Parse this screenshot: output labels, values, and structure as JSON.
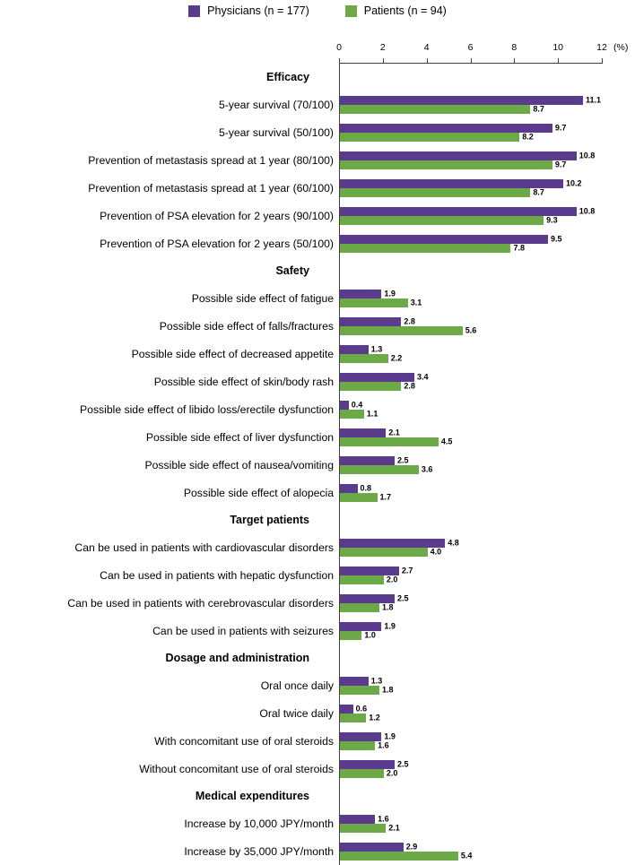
{
  "legend": {
    "physicians_label": "Physicians (n = 177)",
    "patients_label": "Patients (n = 94)"
  },
  "colors": {
    "physicians": "#5B3B8E",
    "patients": "#6BAA46",
    "axis": "#3f3f3f"
  },
  "axis": {
    "ticks": [
      "0",
      "2",
      "4",
      "6",
      "8",
      "10",
      "12"
    ],
    "unit_label": "(%)"
  },
  "chart_data": {
    "type": "bar",
    "orientation": "horizontal",
    "series": [
      "Physicians (n = 177)",
      "Patients (n = 94)"
    ],
    "xlim": [
      0,
      12
    ],
    "xlabel": "(%)",
    "legend_position": "top",
    "grid": false,
    "sections": [
      {
        "header": "Efficacy",
        "items": [
          {
            "label": "5-year survival (70/100)",
            "physicians": 11.1,
            "patients": 8.7
          },
          {
            "label": "5-year survival (50/100)",
            "physicians": 9.7,
            "patients": 8.2
          },
          {
            "label": "Prevention of metastasis spread at 1 year (80/100)",
            "physicians": 10.8,
            "patients": 9.7
          },
          {
            "label": "Prevention of metastasis spread at 1 year (60/100)",
            "physicians": 10.2,
            "patients": 8.7
          },
          {
            "label": "Prevention of PSA elevation for 2 years (90/100)",
            "physicians": 10.8,
            "patients": 9.3
          },
          {
            "label": "Prevention of PSA elevation for 2 years (50/100)",
            "physicians": 9.5,
            "patients": 7.8
          }
        ]
      },
      {
        "header": "Safety",
        "items": [
          {
            "label": "Possible side effect of fatigue",
            "physicians": 1.9,
            "patients": 3.1
          },
          {
            "label": "Possible side effect of falls/fractures",
            "physicians": 2.8,
            "patients": 5.6
          },
          {
            "label": "Possible side effect of decreased appetite",
            "physicians": 1.3,
            "patients": 2.2
          },
          {
            "label": "Possible side effect of skin/body rash",
            "physicians": 3.4,
            "patients": 2.8
          },
          {
            "label": "Possible side effect of libido loss/erectile dysfunction",
            "physicians": 0.4,
            "patients": 1.1
          },
          {
            "label": "Possible side effect of liver dysfunction",
            "physicians": 2.1,
            "patients": 4.5
          },
          {
            "label": "Possible side effect of nausea/vomiting",
            "physicians": 2.5,
            "patients": 3.6
          },
          {
            "label": "Possible side effect of alopecia",
            "physicians": 0.8,
            "patients": 1.7
          }
        ]
      },
      {
        "header": "Target patients",
        "items": [
          {
            "label": "Can be used in patients with cardiovascular disorders",
            "physicians": 4.8,
            "patients": 4.0
          },
          {
            "label": "Can be used in patients with hepatic dysfunction",
            "physicians": 2.7,
            "patients": 2.0
          },
          {
            "label": "Can be used in patients with cerebrovascular disorders",
            "physicians": 2.5,
            "patients": 1.8
          },
          {
            "label": "Can be used in patients with seizures",
            "physicians": 1.9,
            "patients": 1.0
          }
        ]
      },
      {
        "header": "Dosage and administration",
        "items": [
          {
            "label": "Oral once daily",
            "physicians": 1.3,
            "patients": 1.8
          },
          {
            "label": "Oral twice daily",
            "physicians": 0.6,
            "patients": 1.2
          },
          {
            "label": "With concomitant use of oral steroids",
            "physicians": 1.9,
            "patients": 1.6
          },
          {
            "label": "Without concomitant use of oral steroids",
            "physicians": 2.5,
            "patients": 2.0
          }
        ]
      },
      {
        "header": "Medical expenditures",
        "items": [
          {
            "label": "Increase by 10,000 JPY/month",
            "physicians": 1.6,
            "patients": 2.1
          },
          {
            "label": "Increase by 35,000 JPY/month",
            "physicians": 2.9,
            "patients": 5.4
          }
        ]
      }
    ]
  }
}
